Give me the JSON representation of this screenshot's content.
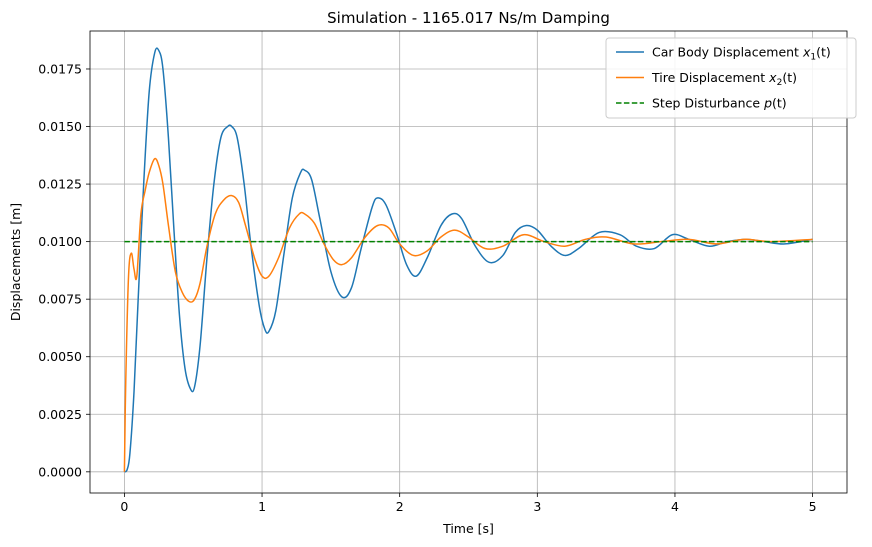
{
  "chart_data": {
    "type": "line",
    "title": "Simulation - 1165.017 Ns/m Damping",
    "xlabel": "Time [s]",
    "ylabel": "Displacements [m]",
    "xlim": [
      -0.25,
      5.25
    ],
    "ylim": [
      -0.00092,
      0.01915
    ],
    "xticks": [
      0,
      1,
      2,
      3,
      4,
      5
    ],
    "xtick_labels": [
      "0",
      "1",
      "2",
      "3",
      "4",
      "5"
    ],
    "yticks": [
      0.0,
      0.0025,
      0.005,
      0.0075,
      0.01,
      0.0125,
      0.015,
      0.0175
    ],
    "ytick_labels": [
      "0.0000",
      "0.0025",
      "0.0050",
      "0.0075",
      "0.0100",
      "0.0125",
      "0.0150",
      "0.0175"
    ],
    "grid": true,
    "legend_position": "top-right",
    "series": [
      {
        "name": "Car Body Displacement x1(t)",
        "legend_base": "Car Body Displacement ",
        "legend_var": "x",
        "legend_sub": "1",
        "legend_tail": "(t)",
        "color": "#1f77b4",
        "style": "solid",
        "x": [
          0,
          0.02,
          0.04,
          0.07,
          0.1,
          0.14,
          0.18,
          0.22,
          0.25,
          0.28,
          0.32,
          0.36,
          0.4,
          0.44,
          0.48,
          0.51,
          0.55,
          0.6,
          0.65,
          0.7,
          0.75,
          0.78,
          0.82,
          0.87,
          0.92,
          0.98,
          1.02,
          1.05,
          1.1,
          1.16,
          1.22,
          1.28,
          1.31,
          1.36,
          1.42,
          1.5,
          1.58,
          1.65,
          1.72,
          1.8,
          1.84,
          1.9,
          1.98,
          2.05,
          2.12,
          2.2,
          2.3,
          2.38,
          2.45,
          2.55,
          2.65,
          2.75,
          2.84,
          2.92,
          3.0,
          3.1,
          3.2,
          3.3,
          3.45,
          3.6,
          3.72,
          3.85,
          3.98,
          4.1,
          4.25,
          4.38,
          4.52,
          4.65,
          4.8,
          5.0
        ],
        "values": [
          0.0,
          0.0001,
          0.0008,
          0.0035,
          0.0075,
          0.0125,
          0.0165,
          0.0182,
          0.0183,
          0.0175,
          0.0145,
          0.0105,
          0.0068,
          0.0045,
          0.0036,
          0.0037,
          0.0055,
          0.0093,
          0.0125,
          0.0145,
          0.015,
          0.015,
          0.0145,
          0.0125,
          0.0098,
          0.0072,
          0.0062,
          0.0061,
          0.007,
          0.0095,
          0.0119,
          0.013,
          0.0131,
          0.0127,
          0.011,
          0.0087,
          0.0076,
          0.008,
          0.0097,
          0.0115,
          0.0119,
          0.0116,
          0.0103,
          0.009,
          0.0085,
          0.0093,
          0.0107,
          0.0112,
          0.011,
          0.0098,
          0.0091,
          0.0094,
          0.0104,
          0.0107,
          0.0105,
          0.0098,
          0.0094,
          0.0097,
          0.0104,
          0.0103,
          0.0098,
          0.0097,
          0.0103,
          0.0101,
          0.0098,
          0.01,
          0.0101,
          0.01,
          0.0099,
          0.0101
        ]
      },
      {
        "name": "Tire Displacement x2(t)",
        "legend_base": "Tire Displacement ",
        "legend_var": "x",
        "legend_sub": "2",
        "legend_tail": "(t)",
        "color": "#ff7f0e",
        "style": "solid",
        "x": [
          0,
          0.01,
          0.03,
          0.05,
          0.07,
          0.09,
          0.12,
          0.15,
          0.18,
          0.22,
          0.25,
          0.28,
          0.32,
          0.37,
          0.42,
          0.47,
          0.51,
          0.55,
          0.6,
          0.66,
          0.72,
          0.78,
          0.83,
          0.88,
          0.95,
          1.0,
          1.05,
          1.12,
          1.2,
          1.27,
          1.31,
          1.38,
          1.45,
          1.52,
          1.58,
          1.65,
          1.75,
          1.84,
          1.92,
          2.0,
          2.1,
          2.2,
          2.3,
          2.4,
          2.5,
          2.62,
          2.75,
          2.9,
          3.05,
          3.2,
          3.35,
          3.5,
          3.7,
          3.9,
          4.1,
          4.3,
          4.5,
          4.7,
          5.0
        ],
        "values": [
          0.0,
          0.004,
          0.0085,
          0.0095,
          0.0088,
          0.0085,
          0.0112,
          0.0122,
          0.013,
          0.0136,
          0.0133,
          0.0125,
          0.0107,
          0.0087,
          0.0078,
          0.0074,
          0.0075,
          0.0082,
          0.0098,
          0.0112,
          0.0118,
          0.012,
          0.0117,
          0.0107,
          0.0092,
          0.0085,
          0.0085,
          0.0093,
          0.0106,
          0.0112,
          0.0112,
          0.0108,
          0.0099,
          0.0092,
          0.009,
          0.0093,
          0.0102,
          0.0107,
          0.0106,
          0.0099,
          0.0094,
          0.0096,
          0.0102,
          0.0105,
          0.0102,
          0.0097,
          0.0098,
          0.0103,
          0.01,
          0.0098,
          0.0101,
          0.0102,
          0.0099,
          0.01,
          0.0101,
          0.0099,
          0.0101,
          0.01,
          0.0101
        ]
      },
      {
        "name": "Step Disturbance p(t)",
        "legend_base": "Step Disturbance ",
        "legend_var": "p",
        "legend_sub": "",
        "legend_tail": "(t)",
        "color": "#008000",
        "style": "dashed",
        "x": [
          0,
          5
        ],
        "values": [
          0.01,
          0.01
        ]
      }
    ]
  }
}
